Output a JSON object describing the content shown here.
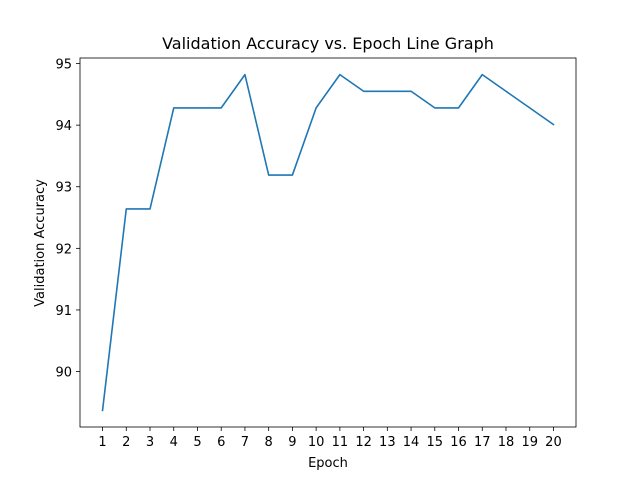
{
  "chart_data": {
    "type": "line",
    "title": "Validation Accuracy vs. Epoch Line Graph",
    "xlabel": "Epoch",
    "ylabel": "Validation Accuracy",
    "x": [
      1,
      2,
      3,
      4,
      5,
      6,
      7,
      8,
      9,
      10,
      11,
      12,
      13,
      14,
      15,
      16,
      17,
      18,
      19,
      20
    ],
    "series": [
      {
        "values": [
          89.37,
          92.64,
          92.64,
          94.28,
          94.28,
          94.28,
          94.82,
          93.19,
          93.19,
          94.28,
          94.82,
          94.55,
          94.55,
          94.55,
          94.28,
          94.28,
          94.82,
          94.55,
          94.28,
          94.01
        ],
        "color": "#1f77b4"
      }
    ],
    "xticks": [
      "1",
      "2",
      "3",
      "4",
      "5",
      "6",
      "7",
      "8",
      "9",
      "10",
      "11",
      "12",
      "13",
      "14",
      "15",
      "16",
      "17",
      "18",
      "19",
      "20"
    ],
    "yticks": [
      "90",
      "91",
      "92",
      "93",
      "94",
      "95"
    ],
    "xlim": [
      0.05,
      20.95
    ],
    "ylim": [
      89.1,
      95.09
    ],
    "grid": false,
    "legend": false
  }
}
